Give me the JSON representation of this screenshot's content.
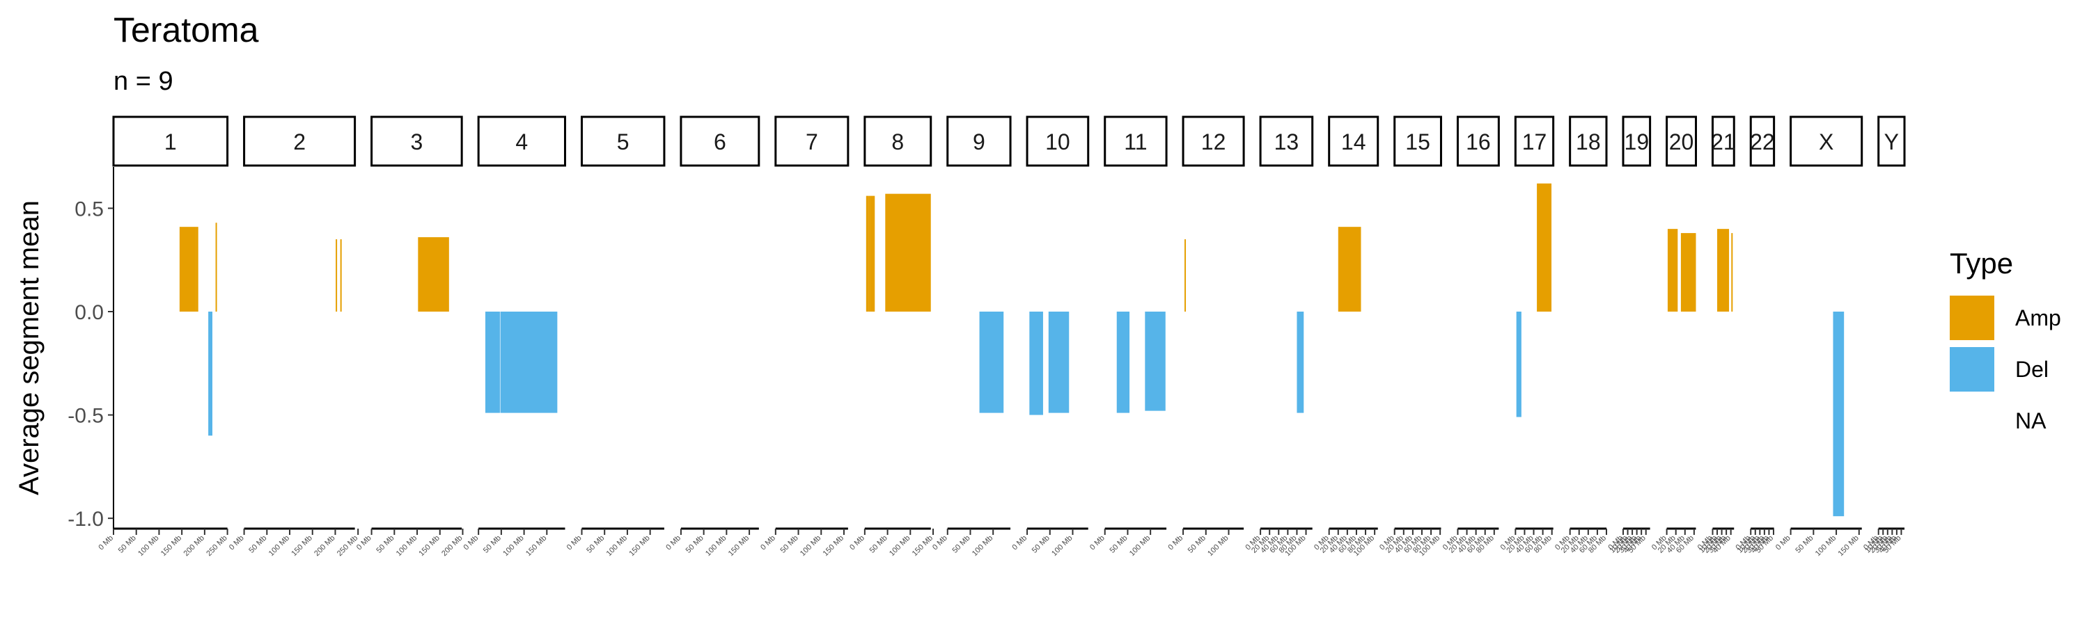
{
  "chart_data": {
    "type": "bar",
    "title": "Teratoma",
    "subtitle": "n = 9",
    "ylabel": "Average segment mean",
    "xlabel": "",
    "ylim": [
      -1.05,
      0.7
    ],
    "yticks": [
      -1.0,
      -0.5,
      0.0,
      0.5
    ],
    "ytick_labels": [
      "-1.0",
      "-0.5",
      "0.0",
      "0.5"
    ],
    "grid": false,
    "legend_position": "right",
    "legend": {
      "title": "Type",
      "entries": [
        {
          "label": "Amp",
          "color": "#E69F00"
        },
        {
          "label": "Del",
          "color": "#56B4E9"
        },
        {
          "label": "NA",
          "color": ""
        }
      ]
    },
    "panels": [
      {
        "label": "1",
        "max_mb": 250,
        "ticks": [
          "0 Mb",
          "50 Mb",
          "100 Mb",
          "150 Mb",
          "200 Mb",
          "250 Mb"
        ]
      },
      {
        "label": "2",
        "max_mb": 243,
        "ticks": [
          "0 Mb",
          "50 Mb",
          "100 Mb",
          "150 Mb",
          "200 Mb",
          "250 Mb"
        ]
      },
      {
        "label": "3",
        "max_mb": 198,
        "ticks": [
          "0 Mb",
          "50 Mb",
          "100 Mb",
          "150 Mb",
          "200 Mb"
        ]
      },
      {
        "label": "4",
        "max_mb": 190,
        "ticks": [
          "0 Mb",
          "50 Mb",
          "100 Mb",
          "150 Mb"
        ]
      },
      {
        "label": "5",
        "max_mb": 181,
        "ticks": [
          "0 Mb",
          "50 Mb",
          "100 Mb",
          "150 Mb"
        ]
      },
      {
        "label": "6",
        "max_mb": 171,
        "ticks": [
          "0 Mb",
          "50 Mb",
          "100 Mb",
          "150 Mb"
        ]
      },
      {
        "label": "7",
        "max_mb": 159,
        "ticks": [
          "0 Mb",
          "50 Mb",
          "100 Mb",
          "150 Mb"
        ]
      },
      {
        "label": "8",
        "max_mb": 145,
        "ticks": [
          "0 Mb",
          "50 Mb",
          "100 Mb",
          "150 Mb"
        ]
      },
      {
        "label": "9",
        "max_mb": 138,
        "ticks": [
          "0 Mb",
          "50 Mb",
          "100 Mb"
        ]
      },
      {
        "label": "10",
        "max_mb": 134,
        "ticks": [
          "0 Mb",
          "50 Mb",
          "100 Mb"
        ]
      },
      {
        "label": "11",
        "max_mb": 135,
        "ticks": [
          "0 Mb",
          "50 Mb",
          "100 Mb"
        ]
      },
      {
        "label": "12",
        "max_mb": 133,
        "ticks": [
          "0 Mb",
          "50 Mb",
          "100 Mb"
        ]
      },
      {
        "label": "13",
        "max_mb": 114,
        "ticks": [
          "0 Mb",
          "20 Mb",
          "40 Mb",
          "60 Mb",
          "80 Mb",
          "100 Mb"
        ]
      },
      {
        "label": "14",
        "max_mb": 107,
        "ticks": [
          "0 Mb",
          "20 Mb",
          "40 Mb",
          "60 Mb",
          "80 Mb",
          "100 Mb"
        ]
      },
      {
        "label": "15",
        "max_mb": 102,
        "ticks": [
          "0 Mb",
          "20 Mb",
          "40 Mb",
          "60 Mb",
          "80 Mb",
          "100 Mb"
        ]
      },
      {
        "label": "16",
        "max_mb": 90,
        "ticks": [
          "0 Mb",
          "20 Mb",
          "40 Mb",
          "60 Mb",
          "80 Mb"
        ]
      },
      {
        "label": "17",
        "max_mb": 83,
        "ticks": [
          "0 Mb",
          "20 Mb",
          "40 Mb",
          "60 Mb",
          "80 Mb"
        ]
      },
      {
        "label": "18",
        "max_mb": 80,
        "ticks": [
          "0 Mb",
          "20 Mb",
          "40 Mb",
          "60 Mb",
          "80 Mb"
        ]
      },
      {
        "label": "19",
        "max_mb": 59,
        "ticks": [
          "0 Mb",
          "10 Mb",
          "20 Mb",
          "30 Mb",
          "40 Mb",
          "50 Mb"
        ]
      },
      {
        "label": "20",
        "max_mb": 64,
        "ticks": [
          "0 Mb",
          "20 Mb",
          "40 Mb",
          "60 Mb"
        ]
      },
      {
        "label": "21",
        "max_mb": 47,
        "ticks": [
          "0 Mb",
          "10 Mb",
          "20 Mb",
          "30 Mb",
          "40 Mb"
        ]
      },
      {
        "label": "22",
        "max_mb": 51,
        "ticks": [
          "0 Mb",
          "10 Mb",
          "20 Mb",
          "30 Mb",
          "40 Mb",
          "50 Mb"
        ]
      },
      {
        "label": "X",
        "max_mb": 156,
        "ticks": [
          "0 Mb",
          "50 Mb",
          "100 Mb",
          "150 Mb"
        ]
      },
      {
        "label": "Y",
        "max_mb": 57,
        "ticks": [
          "0 Mb",
          "10 Mb",
          "20 Mb",
          "30 Mb",
          "40 Mb",
          "50 Mb"
        ]
      }
    ],
    "segments": [
      {
        "chrom": "1",
        "start": 145,
        "end": 149,
        "value": 0.41,
        "type": "Amp"
      },
      {
        "chrom": "1",
        "start": 149,
        "end": 181,
        "value": 0.41,
        "type": "Amp"
      },
      {
        "chrom": "1",
        "start": 181,
        "end": 186,
        "value": 0.41,
        "type": "Amp"
      },
      {
        "chrom": "1",
        "start": 208,
        "end": 217,
        "value": -0.6,
        "type": "Del"
      },
      {
        "chrom": "1",
        "start": 224,
        "end": 226,
        "value": 0.43,
        "type": "Amp"
      },
      {
        "chrom": "2",
        "start": 201,
        "end": 202,
        "value": 0.35,
        "type": "Amp"
      },
      {
        "chrom": "2",
        "start": 211,
        "end": 212,
        "value": 0.35,
        "type": "Amp"
      },
      {
        "chrom": "3",
        "start": 102,
        "end": 170,
        "value": 0.36,
        "type": "Amp"
      },
      {
        "chrom": "4",
        "start": 15,
        "end": 47,
        "value": -0.49,
        "type": "Del"
      },
      {
        "chrom": "4",
        "start": 48,
        "end": 135,
        "value": -0.49,
        "type": "Del"
      },
      {
        "chrom": "4",
        "start": 135,
        "end": 173,
        "value": -0.49,
        "type": "Del"
      },
      {
        "chrom": "8",
        "start": 3,
        "end": 8,
        "value": 0.56,
        "type": "Amp"
      },
      {
        "chrom": "8",
        "start": 8,
        "end": 10,
        "value": 0.56,
        "type": "Amp"
      },
      {
        "chrom": "8",
        "start": 11,
        "end": 22,
        "value": 0.56,
        "type": "Amp"
      },
      {
        "chrom": "8",
        "start": 45,
        "end": 145,
        "value": 0.57,
        "type": "Amp"
      },
      {
        "chrom": "9",
        "start": 70,
        "end": 123,
        "value": -0.49,
        "type": "Del"
      },
      {
        "chrom": "10",
        "start": 5,
        "end": 35,
        "value": -0.5,
        "type": "Del"
      },
      {
        "chrom": "10",
        "start": 47,
        "end": 92,
        "value": -0.49,
        "type": "Del"
      },
      {
        "chrom": "11",
        "start": 26,
        "end": 54,
        "value": -0.49,
        "type": "Del"
      },
      {
        "chrom": "11",
        "start": 88,
        "end": 133,
        "value": -0.48,
        "type": "Del"
      },
      {
        "chrom": "12",
        "start": 3,
        "end": 4,
        "value": 0.35,
        "type": "Amp"
      },
      {
        "chrom": "13",
        "start": 80,
        "end": 95,
        "value": -0.49,
        "type": "Del"
      },
      {
        "chrom": "14",
        "start": 20,
        "end": 22,
        "value": 0.41,
        "type": "Amp"
      },
      {
        "chrom": "14",
        "start": 22,
        "end": 70,
        "value": 0.41,
        "type": "Amp"
      },
      {
        "chrom": "17",
        "start": 2,
        "end": 13,
        "value": -0.51,
        "type": "Del"
      },
      {
        "chrom": "17",
        "start": 47,
        "end": 79,
        "value": 0.62,
        "type": "Amp"
      },
      {
        "chrom": "20",
        "start": 2,
        "end": 24,
        "value": 0.4,
        "type": "Amp"
      },
      {
        "chrom": "20",
        "start": 31,
        "end": 64,
        "value": 0.38,
        "type": "Amp"
      },
      {
        "chrom": "21",
        "start": 10,
        "end": 36,
        "value": 0.4,
        "type": "Amp"
      },
      {
        "chrom": "21",
        "start": 41,
        "end": 43,
        "value": 0.38,
        "type": "Amp"
      },
      {
        "chrom": "X",
        "start": 93,
        "end": 117,
        "value": -0.99,
        "type": "Del"
      }
    ]
  }
}
